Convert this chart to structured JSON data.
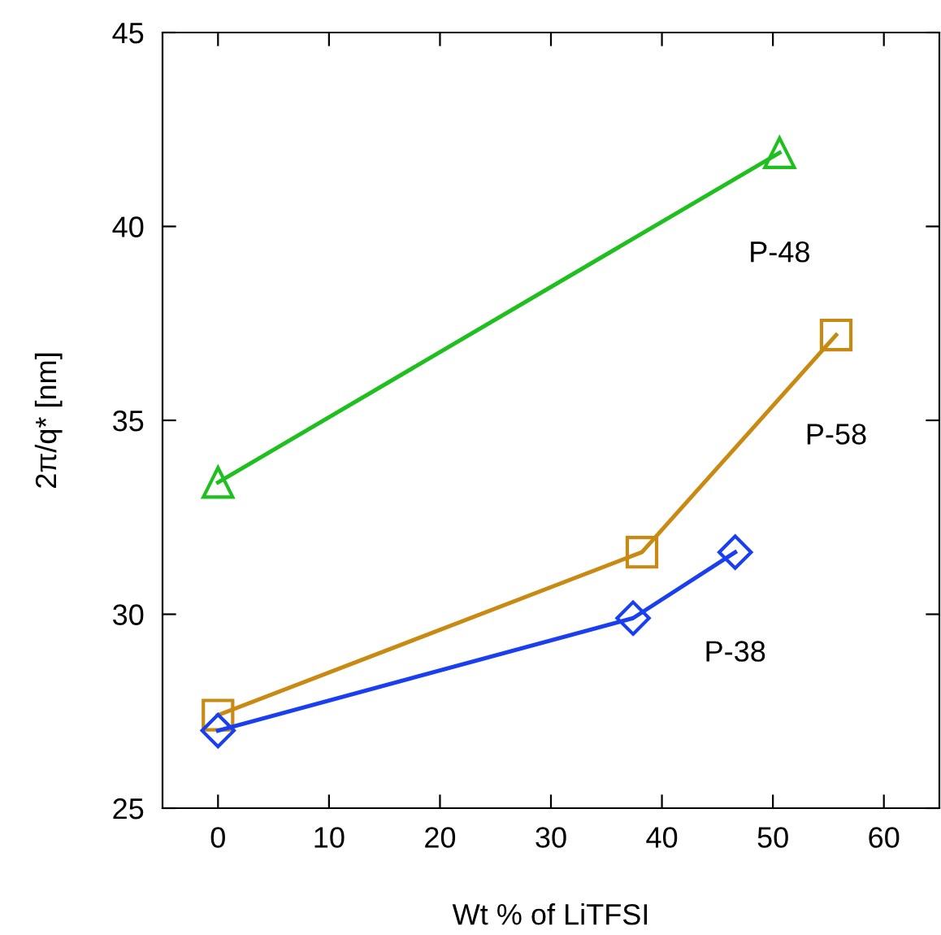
{
  "chart_data": {
    "type": "line",
    "xlabel": "Wt % of LiTFSI",
    "ylabel": "2π/q* [nm]",
    "xlim": [
      -5,
      65
    ],
    "xticks": [
      0,
      10,
      20,
      30,
      40,
      50,
      60
    ],
    "ylim": [
      25,
      45
    ],
    "yticks": [
      25,
      30,
      35,
      40,
      45
    ],
    "grid": false,
    "legend": false,
    "series": [
      {
        "name": "P-48",
        "color": "#1fbf1f",
        "marker": "triangle",
        "x": [
          0,
          50.6
        ],
        "values": [
          33.4,
          41.9
        ]
      },
      {
        "name": "P-58",
        "color": "#c88a12",
        "marker": "square",
        "x": [
          0,
          38.2,
          55.7
        ],
        "values": [
          27.4,
          31.6,
          37.2
        ]
      },
      {
        "name": "P-38",
        "color": "#1a3ff0",
        "marker": "diamond",
        "x": [
          0,
          37.4,
          46.6
        ],
        "values": [
          27.0,
          29.9,
          31.6
        ]
      }
    ]
  }
}
